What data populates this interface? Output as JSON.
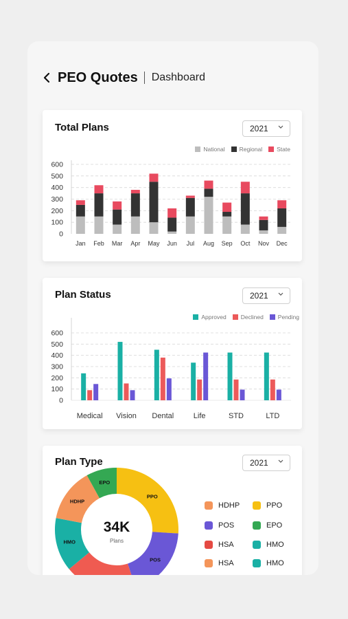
{
  "header": {
    "title": "PEO Quotes",
    "subtitle": "Dashboard"
  },
  "icons": {
    "back": "chevron-left-icon",
    "dropdown": "chevron-down-icon"
  },
  "total_plans": {
    "title": "Total Plans",
    "year": "2021",
    "legend": [
      "National",
      "Regional",
      "State"
    ],
    "colors": [
      "#bdbdbd",
      "#333333",
      "#e84a5f"
    ]
  },
  "plan_status": {
    "title": "Plan Status",
    "year": "2021",
    "legend": [
      "Approved",
      "Declined",
      "Pending"
    ],
    "colors": [
      "#1ab0a5",
      "#ec5a5a",
      "#6a57d6"
    ]
  },
  "plan_type": {
    "title": "Plan Type",
    "year": "2021",
    "center_value": "34K",
    "center_label": "Plans",
    "legend": [
      {
        "label": "HDHP",
        "color": "#f4955a"
      },
      {
        "label": "PPO",
        "color": "#f6c012"
      },
      {
        "label": "POS",
        "color": "#6a57d6"
      },
      {
        "label": "EPO",
        "color": "#34a853"
      },
      {
        "label": "HSA",
        "color": "#e54a43"
      },
      {
        "label": "HMO",
        "color": "#1ab0a5"
      },
      {
        "label": "HSA",
        "color": "#f4955a"
      },
      {
        "label": "HMO",
        "color": "#1ab0a5"
      }
    ]
  },
  "chart_data": [
    {
      "type": "bar",
      "title": "Total Plans",
      "stacked": true,
      "categories": [
        "Jan",
        "Feb",
        "Mar",
        "Apr",
        "May",
        "Jun",
        "Jul",
        "Aug",
        "Sep",
        "Oct",
        "Nov",
        "Dec"
      ],
      "series": [
        {
          "name": "National",
          "values": [
            150,
            150,
            80,
            150,
            100,
            20,
            150,
            320,
            150,
            80,
            30,
            60
          ]
        },
        {
          "name": "Regional",
          "values": [
            100,
            200,
            130,
            200,
            350,
            120,
            160,
            70,
            40,
            270,
            90,
            160
          ]
        },
        {
          "name": "State",
          "values": [
            40,
            70,
            70,
            30,
            70,
            80,
            20,
            70,
            80,
            100,
            30,
            70
          ]
        }
      ],
      "ylim": [
        0,
        600
      ],
      "yticks": [
        0,
        100,
        200,
        300,
        400,
        500,
        600
      ],
      "grid": true,
      "legend_position": "top-right"
    },
    {
      "type": "bar",
      "title": "Plan Status",
      "categories": [
        "Medical",
        "Vision",
        "Dental",
        "Life",
        "STD",
        "LTD"
      ],
      "series": [
        {
          "name": "Approved",
          "values": [
            240,
            520,
            450,
            335,
            425,
            425
          ]
        },
        {
          "name": "Declined",
          "values": [
            90,
            150,
            380,
            185,
            185,
            185
          ]
        },
        {
          "name": "Pending",
          "values": [
            145,
            90,
            195,
            425,
            95,
            95
          ]
        }
      ],
      "ylim": [
        0,
        600
      ],
      "yticks": [
        0,
        100,
        200,
        300,
        400,
        500,
        600
      ],
      "grid": true,
      "legend_position": "top-right"
    },
    {
      "type": "pie",
      "title": "Plan Type",
      "donut": true,
      "slices": [
        {
          "name": "PPO",
          "value": 26
        },
        {
          "name": "POS",
          "value": 19
        },
        {
          "name": "HSA",
          "value": 19
        },
        {
          "name": "HMO",
          "value": 14
        },
        {
          "name": "HDHP",
          "value": 14
        },
        {
          "name": "EPO",
          "value": 8
        }
      ],
      "colors": [
        "#f6c012",
        "#6a57d6",
        "#ef5b51",
        "#1ab0a5",
        "#f4955a",
        "#34a853"
      ]
    }
  ]
}
